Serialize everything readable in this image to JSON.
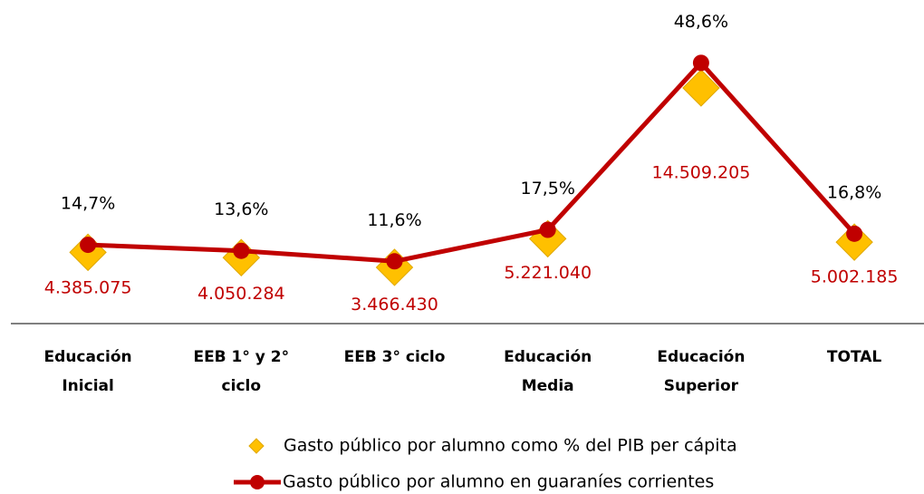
{
  "chart_data": {
    "type": "line",
    "categories": [
      "Educación Inicial",
      "EEB 1° y 2° ciclo",
      "EEB 3° ciclo",
      "Educación Media",
      "Educación Superior",
      "TOTAL"
    ],
    "ylim": [
      0,
      63
    ],
    "y2lim": [
      0,
      17000000
    ],
    "series": [
      {
        "name": "Gasto público por alumno como % del PIB per cápita",
        "color": "#ffc000",
        "marker": "diamond",
        "line": false,
        "values": [
          14.7,
          13.6,
          11.6,
          17.5,
          48.6,
          16.8
        ],
        "value_labels": [
          "14,7%",
          "13,6%",
          "11,6%",
          "17,5%",
          "48,6%",
          "16,8%"
        ]
      },
      {
        "name": "Gasto público  por alumno en guaraníes corrientes",
        "color": "#c00000",
        "marker": "circle",
        "line": true,
        "axis": "y2",
        "values": [
          4385075,
          4050284,
          3466430,
          5221040,
          14509205,
          5002185
        ],
        "value_labels": [
          "4.385.075",
          "4.050.284",
          "3.466.430",
          "5.221.040",
          "14.509.205",
          "5.002.185"
        ]
      }
    ]
  }
}
